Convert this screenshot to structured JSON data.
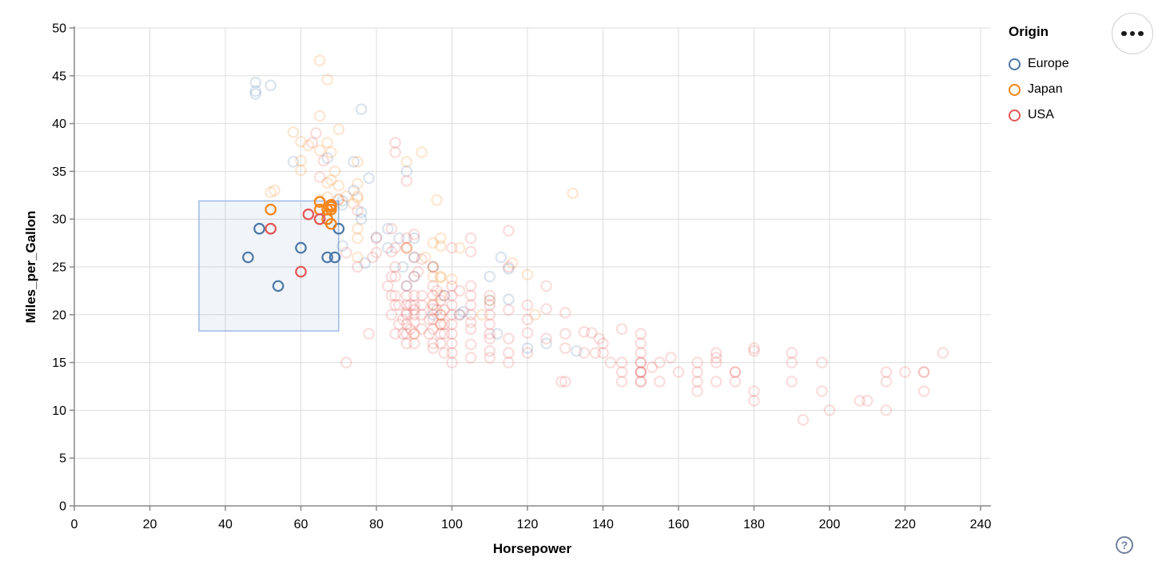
{
  "toolbar": {
    "help_label": "?",
    "menu_label": "..."
  },
  "legend": {
    "title": "Origin",
    "items": [
      {
        "label": "Europe",
        "color": "#4c78a8"
      },
      {
        "label": "Japan",
        "color": "#f58518"
      },
      {
        "label": "USA",
        "color": "#e45756"
      }
    ]
  },
  "chart_data": {
    "type": "scatter",
    "title": "",
    "xlabel": "Horsepower",
    "ylabel": "Miles_per_Gallon",
    "xlim": [
      0,
      240
    ],
    "ylim": [
      0,
      50
    ],
    "x_ticks": [
      0,
      20,
      40,
      60,
      80,
      100,
      120,
      140,
      160,
      180,
      200,
      220,
      240
    ],
    "y_ticks": [
      0,
      5,
      10,
      15,
      20,
      25,
      30,
      35,
      40,
      45,
      50
    ],
    "grid": true,
    "legend_position": "top-right",
    "brush": {
      "x": [
        33,
        70
      ],
      "y": [
        18.3,
        31.9
      ]
    },
    "brush_fill": "#4c78a8",
    "brush_fill_opacity": 0.08,
    "brush_stroke": "#9db9e4",
    "unselected_opacity": 0.2,
    "point_colors": {
      "Europe": "#4c78a8",
      "Japan": "#f58518",
      "USA": "#e45756"
    },
    "series": [
      {
        "name": "Europe",
        "color": "#4c78a8",
        "points": [
          [
            48,
            43.1
          ],
          [
            48,
            44.3
          ],
          [
            48,
            43.4
          ],
          [
            52,
            44
          ],
          [
            76,
            41.5
          ],
          [
            67,
            36.4
          ],
          [
            58,
            36
          ],
          [
            74,
            36
          ],
          [
            78,
            34.3
          ],
          [
            74,
            33
          ],
          [
            71,
            31.9
          ],
          [
            71,
            31.5
          ],
          [
            76,
            30.7
          ],
          [
            76,
            30
          ],
          [
            80,
            28.1
          ],
          [
            83,
            29
          ],
          [
            46,
            26
          ],
          [
            49,
            29
          ],
          [
            54,
            23
          ],
          [
            60,
            27
          ],
          [
            67,
            30
          ],
          [
            67,
            26
          ],
          [
            69,
            26
          ],
          [
            70,
            29
          ],
          [
            71,
            27.2
          ],
          [
            77,
            25.4
          ],
          [
            83,
            27
          ],
          [
            86,
            28
          ],
          [
            87,
            25
          ],
          [
            88,
            35
          ],
          [
            88,
            23
          ],
          [
            90,
            24
          ],
          [
            90,
            28
          ],
          [
            90,
            26
          ],
          [
            95,
            25
          ],
          [
            95,
            20
          ],
          [
            98,
            22
          ],
          [
            102,
            20
          ],
          [
            103,
            20.3
          ],
          [
            110,
            21.5
          ],
          [
            110,
            24
          ],
          [
            112,
            18
          ],
          [
            113,
            26
          ],
          [
            115,
            24.8
          ],
          [
            115,
            21.6
          ],
          [
            120,
            16.5
          ],
          [
            125,
            17
          ],
          [
            133,
            16.2
          ]
        ]
      },
      {
        "name": "Japan",
        "color": "#f58518",
        "points": [
          [
            65,
            46.6
          ],
          [
            67,
            44.6
          ],
          [
            65,
            40.8
          ],
          [
            70,
            39.4
          ],
          [
            58,
            39.1
          ],
          [
            60,
            38.1
          ],
          [
            67,
            38
          ],
          [
            62,
            37.7
          ],
          [
            65,
            37.2
          ],
          [
            68,
            37
          ],
          [
            92,
            37
          ],
          [
            60,
            36.1
          ],
          [
            88,
            36
          ],
          [
            75,
            36
          ],
          [
            60,
            35.1
          ],
          [
            69,
            35
          ],
          [
            68,
            34.1
          ],
          [
            67,
            33.8
          ],
          [
            70,
            33.5
          ],
          [
            53,
            33
          ],
          [
            75,
            33.7
          ],
          [
            52,
            32.8
          ],
          [
            132,
            32.7
          ],
          [
            96,
            32
          ],
          [
            65,
            32
          ],
          [
            70,
            32
          ],
          [
            75,
            32.2
          ],
          [
            75,
            32.4
          ],
          [
            72,
            32.4
          ],
          [
            67,
            32.3
          ],
          [
            65,
            31.8
          ],
          [
            68,
            31.5
          ],
          [
            74,
            31.6
          ],
          [
            68,
            31.3
          ],
          [
            65,
            31
          ],
          [
            67,
            31
          ],
          [
            68,
            31
          ],
          [
            52,
            31
          ],
          [
            68,
            29.5
          ],
          [
            67,
            30
          ],
          [
            75,
            29
          ],
          [
            75,
            28
          ],
          [
            97,
            28
          ],
          [
            95,
            27.5
          ],
          [
            88,
            27
          ],
          [
            88,
            27
          ],
          [
            97,
            27.2
          ],
          [
            102,
            27
          ],
          [
            93,
            26
          ],
          [
            75,
            26
          ],
          [
            116,
            25.4
          ],
          [
            95,
            25
          ],
          [
            120,
            24.2
          ],
          [
            97,
            24
          ],
          [
            95,
            24
          ],
          [
            97,
            23.9
          ],
          [
            100,
            23.7
          ],
          [
            97,
            22
          ],
          [
            95,
            21.1
          ],
          [
            110,
            21.5
          ],
          [
            122,
            20
          ],
          [
            97,
            20
          ],
          [
            108,
            20
          ],
          [
            97,
            19
          ],
          [
            90,
            18
          ]
        ]
      },
      {
        "name": "USA",
        "color": "#e45756",
        "points": [
          [
            52,
            29
          ],
          [
            60,
            24.5
          ],
          [
            62,
            30.5
          ],
          [
            65,
            30
          ],
          [
            64,
            39
          ],
          [
            63,
            38
          ],
          [
            65,
            34.4
          ],
          [
            66,
            36.1
          ],
          [
            70,
            32.1
          ],
          [
            72,
            26.5
          ],
          [
            72,
            15
          ],
          [
            75,
            25
          ],
          [
            75,
            30.9
          ],
          [
            78,
            18
          ],
          [
            79,
            26
          ],
          [
            80,
            28
          ],
          [
            80,
            26.5
          ],
          [
            83,
            23
          ],
          [
            84,
            29
          ],
          [
            84,
            26.6
          ],
          [
            84,
            24
          ],
          [
            84,
            22
          ],
          [
            84,
            20
          ],
          [
            85,
            38
          ],
          [
            85,
            37
          ],
          [
            85,
            27
          ],
          [
            85,
            25
          ],
          [
            85,
            24
          ],
          [
            85,
            22
          ],
          [
            85,
            21
          ],
          [
            85,
            18
          ],
          [
            86,
            21
          ],
          [
            86,
            19
          ],
          [
            87,
            19.5
          ],
          [
            87,
            18
          ],
          [
            88,
            34
          ],
          [
            88,
            28
          ],
          [
            88,
            27
          ],
          [
            88,
            23
          ],
          [
            88,
            22
          ],
          [
            88,
            21
          ],
          [
            88,
            20.2
          ],
          [
            88,
            20
          ],
          [
            88,
            19
          ],
          [
            88,
            18
          ],
          [
            88,
            17
          ],
          [
            89,
            21
          ],
          [
            89,
            18.5
          ],
          [
            90,
            28.4
          ],
          [
            90,
            26
          ],
          [
            90,
            24
          ],
          [
            90,
            22
          ],
          [
            90,
            21
          ],
          [
            90,
            20.5
          ],
          [
            90,
            20
          ],
          [
            90,
            19.2
          ],
          [
            90,
            18
          ],
          [
            90,
            17
          ],
          [
            91,
            24.5
          ],
          [
            92,
            25.8
          ],
          [
            92,
            22
          ],
          [
            92,
            21
          ],
          [
            92,
            20
          ],
          [
            92,
            18.5
          ],
          [
            94,
            19.5
          ],
          [
            94,
            18
          ],
          [
            95,
            25
          ],
          [
            95,
            23
          ],
          [
            95,
            22
          ],
          [
            95,
            21
          ],
          [
            95,
            20.6
          ],
          [
            95,
            19.5
          ],
          [
            95,
            18.5
          ],
          [
            95,
            17
          ],
          [
            95,
            16.5
          ],
          [
            96,
            22.5
          ],
          [
            96,
            20.5
          ],
          [
            97,
            21.5
          ],
          [
            97,
            20
          ],
          [
            97,
            19
          ],
          [
            97,
            18
          ],
          [
            97,
            17
          ],
          [
            98,
            22
          ],
          [
            98,
            20.5
          ],
          [
            98,
            19
          ],
          [
            98,
            18
          ],
          [
            98,
            16
          ],
          [
            100,
            27
          ],
          [
            100,
            23
          ],
          [
            100,
            22
          ],
          [
            100,
            21
          ],
          [
            100,
            20
          ],
          [
            100,
            19
          ],
          [
            100,
            18
          ],
          [
            100,
            17
          ],
          [
            100,
            16
          ],
          [
            100,
            15
          ],
          [
            102,
            22.5
          ],
          [
            102,
            20
          ],
          [
            105,
            28
          ],
          [
            105,
            26.6
          ],
          [
            105,
            23
          ],
          [
            105,
            22
          ],
          [
            105,
            21
          ],
          [
            105,
            20
          ],
          [
            105,
            19.2
          ],
          [
            105,
            18.5
          ],
          [
            105,
            16.9
          ],
          [
            105,
            15.5
          ],
          [
            110,
            22
          ],
          [
            110,
            21
          ],
          [
            110,
            20
          ],
          [
            110,
            19
          ],
          [
            110,
            18
          ],
          [
            110,
            17.5
          ],
          [
            110,
            16.2
          ],
          [
            110,
            15.5
          ],
          [
            115,
            28.8
          ],
          [
            115,
            25
          ],
          [
            115,
            20.5
          ],
          [
            115,
            17.5
          ],
          [
            115,
            16
          ],
          [
            115,
            15
          ],
          [
            120,
            21
          ],
          [
            120,
            19.5
          ],
          [
            120,
            18.1
          ],
          [
            120,
            16
          ],
          [
            125,
            23
          ],
          [
            125,
            20.6
          ],
          [
            125,
            17.5
          ],
          [
            129,
            13
          ],
          [
            130,
            20.2
          ],
          [
            130,
            18
          ],
          [
            130,
            16.5
          ],
          [
            130,
            13
          ],
          [
            135,
            18.2
          ],
          [
            135,
            16
          ],
          [
            137,
            18.1
          ],
          [
            138,
            16
          ],
          [
            139,
            17.5
          ],
          [
            140,
            17
          ],
          [
            140,
            16
          ],
          [
            142,
            15
          ],
          [
            145,
            18.5
          ],
          [
            145,
            15
          ],
          [
            145,
            14
          ],
          [
            145,
            13
          ],
          [
            150,
            18
          ],
          [
            150,
            17
          ],
          [
            150,
            16
          ],
          [
            150,
            15
          ],
          [
            150,
            15
          ],
          [
            150,
            14
          ],
          [
            150,
            14
          ],
          [
            150,
            14
          ],
          [
            150,
            13
          ],
          [
            150,
            13
          ],
          [
            153,
            14.5
          ],
          [
            155,
            15
          ],
          [
            155,
            13
          ],
          [
            158,
            15.5
          ],
          [
            160,
            14
          ],
          [
            165,
            15
          ],
          [
            165,
            14
          ],
          [
            165,
            13
          ],
          [
            165,
            12
          ],
          [
            170,
            16
          ],
          [
            170,
            15.5
          ],
          [
            170,
            15
          ],
          [
            170,
            13
          ],
          [
            175,
            14
          ],
          [
            175,
            14
          ],
          [
            175,
            13
          ],
          [
            180,
            16.5
          ],
          [
            180,
            16.2
          ],
          [
            180,
            12
          ],
          [
            180,
            11
          ],
          [
            190,
            16
          ],
          [
            190,
            15
          ],
          [
            190,
            13
          ],
          [
            193,
            9
          ],
          [
            198,
            15
          ],
          [
            198,
            12
          ],
          [
            200,
            10
          ],
          [
            208,
            11
          ],
          [
            210,
            11
          ],
          [
            215,
            14
          ],
          [
            215,
            13
          ],
          [
            215,
            10
          ],
          [
            220,
            14
          ],
          [
            225,
            14
          ],
          [
            225,
            14
          ],
          [
            225,
            12
          ],
          [
            230,
            16
          ]
        ]
      }
    ]
  }
}
